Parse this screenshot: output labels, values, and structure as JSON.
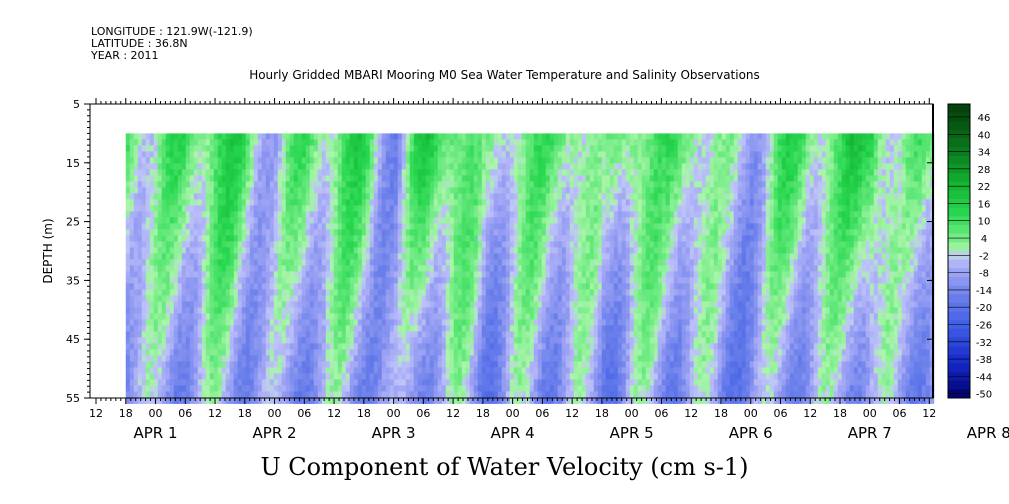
{
  "header": {
    "longitude": "LONGITUDE : 121.9W(-121.9)",
    "latitude": "LATITUDE : 36.8N",
    "year": "YEAR : 2011",
    "plot_title": "Hourly Gridded MBARI Mooring M0 Sea Water Temperature and Salinity Observations",
    "variable_title": "U Component of Water Velocity (cm s-1)"
  },
  "chart_data": {
    "type": "heatmap",
    "title": "Hourly Gridded MBARI Mooring M0 Sea Water Temperature and Salinity Observations",
    "xlabel": "",
    "ylabel": "DEPTH (m)",
    "ylim": [
      5,
      55
    ],
    "y_inverted": true,
    "y_ticks": [
      "5",
      "15",
      "25",
      "35",
      "45",
      "55"
    ],
    "x_hour_ticks": [
      "12",
      "18",
      "00",
      "06",
      "12",
      "18",
      "00",
      "06",
      "12",
      "18",
      "00",
      "06",
      "12",
      "18",
      "00",
      "06",
      "12",
      "18",
      "00",
      "06",
      "12",
      "18",
      "00",
      "06",
      "12",
      "18",
      "00",
      "06",
      "12",
      "18",
      "00",
      "06"
    ],
    "x_day_labels": [
      "APR  1",
      "APR  2",
      "APR  3",
      "APR  4",
      "APR  5",
      "APR  6",
      "APR  7",
      "APR  8"
    ],
    "data_start": "APR 1 18:00",
    "data_end": "APR 8 12:00",
    "data_depth_top": 10,
    "data_depth_bottom": 55,
    "colorbar": {
      "labels": [
        "46",
        "40",
        "34",
        "28",
        "22",
        "16",
        "10",
        "4",
        "-2",
        "-8",
        "-14",
        "-20",
        "-26",
        "-32",
        "-38",
        "-44",
        "-50"
      ],
      "min": -50,
      "max": 52,
      "step": 3
    },
    "surface_sign_by_day_hour": [
      {
        "t": "APR 1 18",
        "u": 12
      },
      {
        "t": "APR 2 00",
        "u": 3
      },
      {
        "t": "APR 2 06",
        "u": 10
      },
      {
        "t": "APR 2 12",
        "u": 14
      },
      {
        "t": "APR 2 18",
        "u": 8
      },
      {
        "t": "APR 3 00",
        "u": -2
      },
      {
        "t": "APR 3 06",
        "u": 8
      },
      {
        "t": "APR 3 12",
        "u": 10
      },
      {
        "t": "APR 3 18",
        "u": 10
      },
      {
        "t": "APR 4 00",
        "u": -8
      },
      {
        "t": "APR 4 06",
        "u": 14
      },
      {
        "t": "APR 4 12",
        "u": 16
      },
      {
        "t": "APR 4 18",
        "u": -4
      },
      {
        "t": "APR 5 00",
        "u": 10
      },
      {
        "t": "APR 5 06",
        "u": 4
      },
      {
        "t": "APR 5 12",
        "u": 12
      },
      {
        "t": "APR 5 18",
        "u": -6
      },
      {
        "t": "APR 6 00",
        "u": 14
      },
      {
        "t": "APR 6 06",
        "u": 4
      },
      {
        "t": "APR 6 12",
        "u": 12
      },
      {
        "t": "APR 6 18",
        "u": -4
      },
      {
        "t": "APR 7 00",
        "u": -2
      },
      {
        "t": "APR 7 06",
        "u": 8
      },
      {
        "t": "APR 7 12",
        "u": 10
      },
      {
        "t": "APR 7 18",
        "u": 8
      },
      {
        "t": "APR 8 00",
        "u": 20
      },
      {
        "t": "APR 8 06",
        "u": -4
      },
      {
        "t": "APR 8 12",
        "u": 10
      }
    ],
    "colors": {
      "positive_dark": "#0a4d0a",
      "positive_mid": "#18c83a",
      "positive_light": "#a4f0a4",
      "negative_light": "#b4b4f4",
      "negative_mid": "#5a78e0",
      "negative_dark": "#00006a",
      "missing": "#ffffff"
    }
  }
}
